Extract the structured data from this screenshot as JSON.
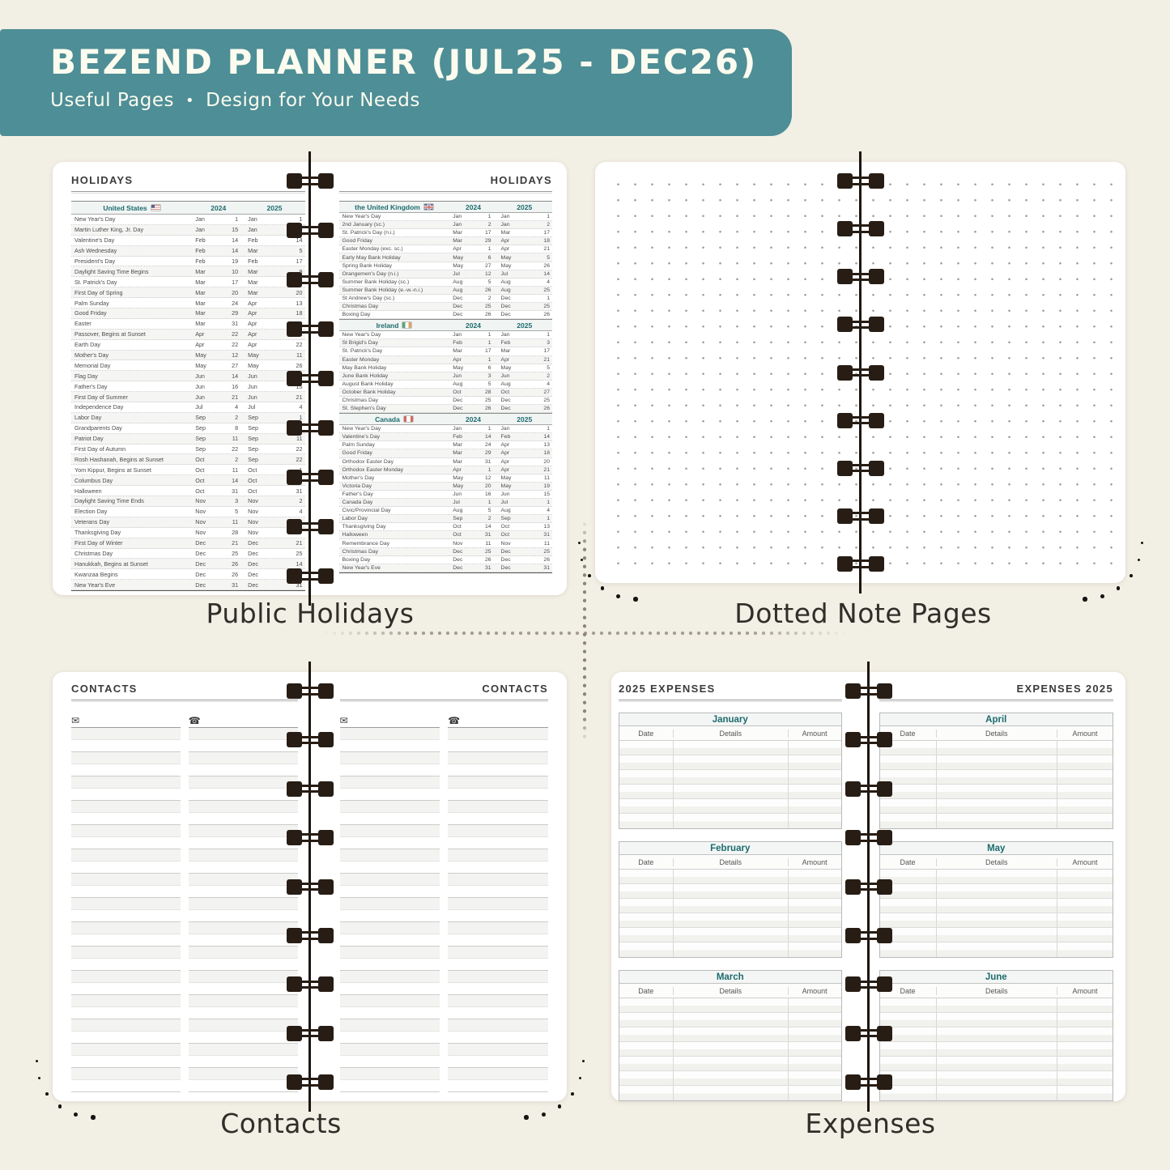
{
  "header": {
    "title": "BEZEND PLANNER (JUL25 - DEC26)",
    "separator": "•",
    "features": [
      "Useful Pages",
      "Design for Your Needs"
    ]
  },
  "colors": {
    "background": "#f2efe5",
    "banner": "#4e8e96",
    "banner_text": "#fbfbef",
    "accent_teal": "#1d6b6e",
    "caption_text": "#302e29",
    "binding": "#271d14"
  },
  "holidays": {
    "page_title": "HOLIDAYS",
    "caption": "Public Holidays",
    "year_cols": [
      "2024",
      "2025"
    ],
    "sections": {
      "us": {
        "name": "United States",
        "flag_icon": "us-flag-icon",
        "rows": [
          [
            "New Year's Day",
            "Jan",
            "1",
            "Jan",
            "1"
          ],
          [
            "Martin Luther King, Jr. Day",
            "Jan",
            "15",
            "Jan",
            "20"
          ],
          [
            "Valentine's Day",
            "Feb",
            "14",
            "Feb",
            "14"
          ],
          [
            "Ash Wednesday",
            "Feb",
            "14",
            "Mar",
            "5"
          ],
          [
            "President's Day",
            "Feb",
            "19",
            "Feb",
            "17"
          ],
          [
            "Daylight Saving Time Begins",
            "Mar",
            "10",
            "Mar",
            "9"
          ],
          [
            "St. Patrick's Day",
            "Mar",
            "17",
            "Mar",
            "17"
          ],
          [
            "First Day of Spring",
            "Mar",
            "20",
            "Mar",
            "20"
          ],
          [
            "Palm Sunday",
            "Mar",
            "24",
            "Apr",
            "13"
          ],
          [
            "Good Friday",
            "Mar",
            "29",
            "Apr",
            "18"
          ],
          [
            "Easter",
            "Mar",
            "31",
            "Apr",
            "20"
          ],
          [
            "Passover, Begins at Sunset",
            "Apr",
            "22",
            "Apr",
            "12"
          ],
          [
            "Earth Day",
            "Apr",
            "22",
            "Apr",
            "22"
          ],
          [
            "Mother's Day",
            "May",
            "12",
            "May",
            "11"
          ],
          [
            "Memorial Day",
            "May",
            "27",
            "May",
            "26"
          ],
          [
            "Flag Day",
            "Jun",
            "14",
            "Jun",
            "14"
          ],
          [
            "Father's Day",
            "Jun",
            "16",
            "Jun",
            "15"
          ],
          [
            "First Day of Summer",
            "Jun",
            "21",
            "Jun",
            "21"
          ],
          [
            "Independence Day",
            "Jul",
            "4",
            "Jul",
            "4"
          ],
          [
            "Labor Day",
            "Sep",
            "2",
            "Sep",
            "1"
          ],
          [
            "Grandparents Day",
            "Sep",
            "8",
            "Sep",
            "7"
          ],
          [
            "Patriot Day",
            "Sep",
            "11",
            "Sep",
            "11"
          ],
          [
            "First Day of Autumn",
            "Sep",
            "22",
            "Sep",
            "22"
          ],
          [
            "Rosh Hashanah, Begins at Sunset",
            "Oct",
            "2",
            "Sep",
            "22"
          ],
          [
            "Yom Kippur, Begins at Sunset",
            "Oct",
            "11",
            "Oct",
            "1"
          ],
          [
            "Columbus Day",
            "Oct",
            "14",
            "Oct",
            "13"
          ],
          [
            "Halloween",
            "Oct",
            "31",
            "Oct",
            "31"
          ],
          [
            "Daylight Saving Time Ends",
            "Nov",
            "3",
            "Nov",
            "2"
          ],
          [
            "Election Day",
            "Nov",
            "5",
            "Nov",
            "4"
          ],
          [
            "Veterans Day",
            "Nov",
            "11",
            "Nov",
            "11"
          ],
          [
            "Thanksgiving Day",
            "Nov",
            "28",
            "Nov",
            "27"
          ],
          [
            "First Day of Winter",
            "Dec",
            "21",
            "Dec",
            "21"
          ],
          [
            "Christmas Day",
            "Dec",
            "25",
            "Dec",
            "25"
          ],
          [
            "Hanukkah, Begins at Sunset",
            "Dec",
            "26",
            "Dec",
            "14"
          ],
          [
            "Kwanzaa Begins",
            "Dec",
            "26",
            "Dec",
            "26"
          ],
          [
            "New Year's Eve",
            "Dec",
            "31",
            "Dec",
            "31"
          ]
        ]
      },
      "uk": {
        "name": "the United Kingdom",
        "flag_icon": "uk-flag-icon",
        "rows": [
          [
            "New Year's Day",
            "Jan",
            "1",
            "Jan",
            "1"
          ],
          [
            "2nd January (sc.)",
            "Jan",
            "2",
            "Jan",
            "2"
          ],
          [
            "St. Patrick's Day (n.i.)",
            "Mar",
            "17",
            "Mar",
            "17"
          ],
          [
            "Good Friday",
            "Mar",
            "29",
            "Apr",
            "18"
          ],
          [
            "Easter Monday (exc. sc.)",
            "Apr",
            "1",
            "Apr",
            "21"
          ],
          [
            "Early May Bank Holiday",
            "May",
            "6",
            "May",
            "5"
          ],
          [
            "Spring Bank Holiday",
            "May",
            "27",
            "May",
            "26"
          ],
          [
            "Orangemen's Day (n.i.)",
            "Jul",
            "12",
            "Jul",
            "14"
          ],
          [
            "Summer Bank Holiday (sc.)",
            "Aug",
            "5",
            "Aug",
            "4"
          ],
          [
            "Summer Bank Holiday (e.-w.-n.i.)",
            "Aug",
            "26",
            "Aug",
            "25"
          ],
          [
            "St Andrew's Day (sc.)",
            "Dec",
            "2",
            "Dec",
            "1"
          ],
          [
            "Christmas Day",
            "Dec",
            "25",
            "Dec",
            "25"
          ],
          [
            "Boxing Day",
            "Dec",
            "26",
            "Dec",
            "26"
          ]
        ]
      },
      "ireland": {
        "name": "Ireland",
        "flag_icon": "ireland-flag-icon",
        "rows": [
          [
            "New Year's Day",
            "Jan",
            "1",
            "Jan",
            "1"
          ],
          [
            "St Brigid's Day",
            "Feb",
            "1",
            "Feb",
            "3"
          ],
          [
            "St. Patrick's Day",
            "Mar",
            "17",
            "Mar",
            "17"
          ],
          [
            "Easter Monday",
            "Apr",
            "1",
            "Apr",
            "21"
          ],
          [
            "May Bank Holiday",
            "May",
            "6",
            "May",
            "5"
          ],
          [
            "June Bank Holiday",
            "Jun",
            "3",
            "Jun",
            "2"
          ],
          [
            "August Bank Holiday",
            "Aug",
            "5",
            "Aug",
            "4"
          ],
          [
            "October Bank Holiday",
            "Oct",
            "28",
            "Oct",
            "27"
          ],
          [
            "Christmas Day",
            "Dec",
            "25",
            "Dec",
            "25"
          ],
          [
            "St. Stephen's Day",
            "Dec",
            "26",
            "Dec",
            "26"
          ]
        ]
      },
      "canada": {
        "name": "Canada",
        "flag_icon": "canada-flag-icon",
        "rows": [
          [
            "New Year's Day",
            "Jan",
            "1",
            "Jan",
            "1"
          ],
          [
            "Valentine's Day",
            "Feb",
            "14",
            "Feb",
            "14"
          ],
          [
            "Palm Sunday",
            "Mar",
            "24",
            "Apr",
            "13"
          ],
          [
            "Good Friday",
            "Mar",
            "29",
            "Apr",
            "18"
          ],
          [
            "Orthodox Easter Day",
            "Mar",
            "31",
            "Apr",
            "20"
          ],
          [
            "Orthodox Easter Monday",
            "Apr",
            "1",
            "Apr",
            "21"
          ],
          [
            "Mother's Day",
            "May",
            "12",
            "May",
            "11"
          ],
          [
            "Victoria Day",
            "May",
            "20",
            "May",
            "19"
          ],
          [
            "Father's Day",
            "Jun",
            "16",
            "Jun",
            "15"
          ],
          [
            "Canada Day",
            "Jul",
            "1",
            "Jul",
            "1"
          ],
          [
            "Civic/Provincial Day",
            "Aug",
            "5",
            "Aug",
            "4"
          ],
          [
            "Labor Day",
            "Sep",
            "2",
            "Sep",
            "1"
          ],
          [
            "Thanksgiving Day",
            "Oct",
            "14",
            "Oct",
            "13"
          ],
          [
            "Halloween",
            "Oct",
            "31",
            "Oct",
            "31"
          ],
          [
            "Remembrance Day",
            "Nov",
            "11",
            "Nov",
            "11"
          ],
          [
            "Christmas Day",
            "Dec",
            "25",
            "Dec",
            "25"
          ],
          [
            "Boxing Day",
            "Dec",
            "26",
            "Dec",
            "26"
          ],
          [
            "New Year's Eve",
            "Dec",
            "31",
            "Dec",
            "31"
          ]
        ]
      }
    }
  },
  "dotted": {
    "caption": "Dotted Note Pages"
  },
  "contacts": {
    "page_title": "CONTACTS",
    "caption": "Contacts",
    "icons": [
      {
        "name": "envelope-icon",
        "glyph": "✉"
      },
      {
        "name": "phone-icon",
        "glyph": "☎"
      }
    ]
  },
  "expenses": {
    "title_left": "2025 EXPENSES",
    "title_right": "EXPENSES 2025",
    "caption": "Expenses",
    "columns": [
      "Date",
      "Details",
      "Amount"
    ],
    "months": [
      "January",
      "February",
      "March",
      "April",
      "May",
      "June"
    ]
  }
}
